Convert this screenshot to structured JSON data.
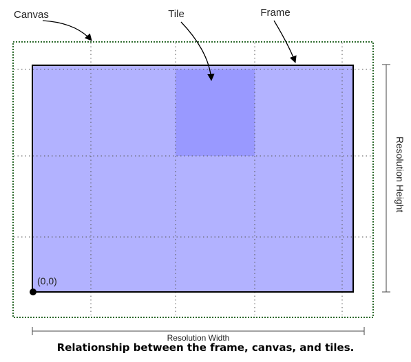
{
  "labels": {
    "canvas": "Canvas",
    "tile": "Tile",
    "frame": "Frame",
    "origin": "(0,0)",
    "resolution_width": "Resolution Width",
    "resolution_height": "Resolution Height"
  },
  "caption": "Relationship between the frame, canvas, and tiles.",
  "colors": {
    "frame_fill": "#b2b2ff",
    "tile_highlight": "#9999ff",
    "frame_border": "#000000",
    "canvas_border": "#2e6b2e",
    "grid_lines": "#555555"
  }
}
